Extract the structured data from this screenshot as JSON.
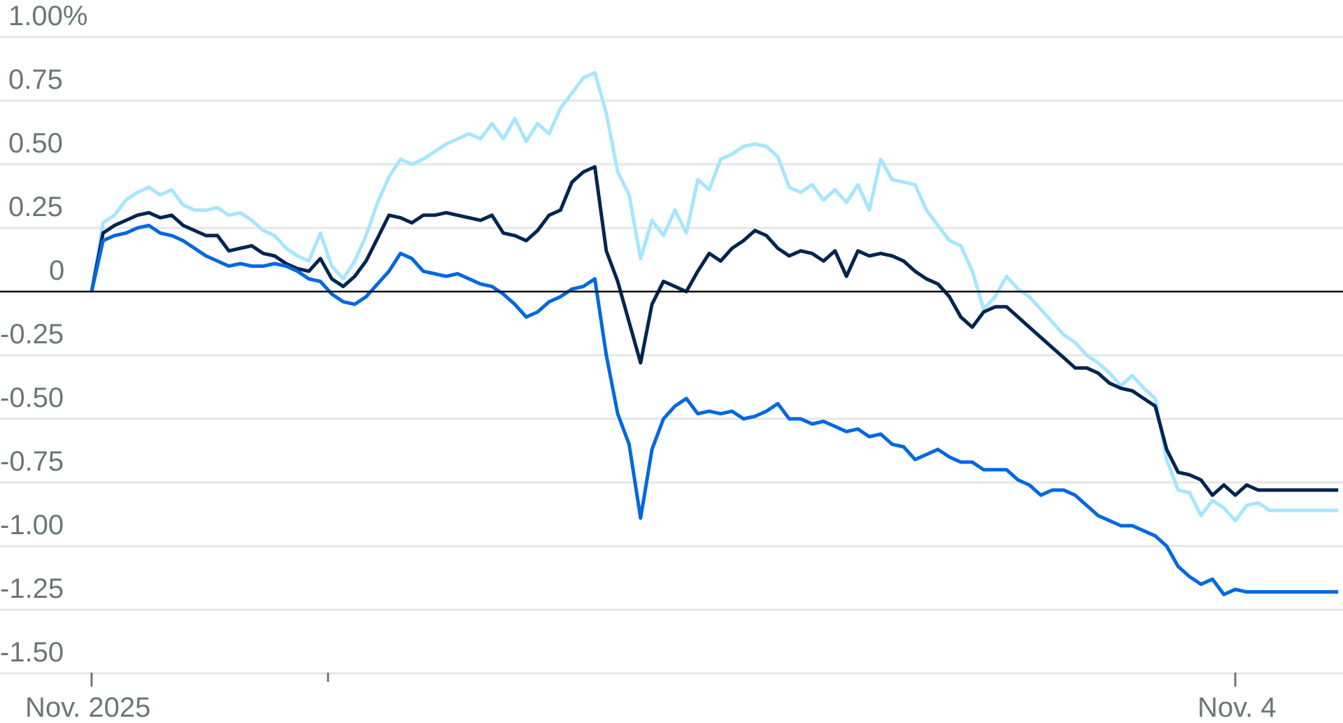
{
  "chart_data": {
    "type": "line",
    "title": "",
    "xlabel": "",
    "ylabel": "",
    "ylim": [
      -1.5,
      1.0
    ],
    "y_ticks": [
      {
        "value": 1.0,
        "label": "1.00%"
      },
      {
        "value": 0.75,
        "label": "0.75"
      },
      {
        "value": 0.5,
        "label": "0.50"
      },
      {
        "value": 0.25,
        "label": "0.25"
      },
      {
        "value": 0,
        "label": "0"
      },
      {
        "value": -0.25,
        "label": "-0.25"
      },
      {
        "value": -0.5,
        "label": "-0.50"
      },
      {
        "value": -0.75,
        "label": "-0.75"
      },
      {
        "value": -1.0,
        "label": "-1.00"
      },
      {
        "value": -1.25,
        "label": "-1.25"
      },
      {
        "value": -1.5,
        "label": "-1.50"
      }
    ],
    "x_ticks": [
      {
        "pos": 0,
        "label": "Nov. 2025"
      },
      {
        "pos": 0.2067,
        "label": ""
      },
      {
        "pos": 1.0,
        "label": "Nov. 4"
      }
    ],
    "grid": true,
    "legend": null,
    "x": [
      0,
      0.01,
      0.02,
      0.03,
      0.04,
      0.05,
      0.06,
      0.07,
      0.08,
      0.09,
      0.1,
      0.11,
      0.12,
      0.13,
      0.14,
      0.15,
      0.16,
      0.17,
      0.18,
      0.19,
      0.2,
      0.21,
      0.22,
      0.23,
      0.24,
      0.25,
      0.26,
      0.27,
      0.28,
      0.29,
      0.3,
      0.31,
      0.32,
      0.33,
      0.34,
      0.35,
      0.36,
      0.37,
      0.38,
      0.39,
      0.4,
      0.41,
      0.42,
      0.43,
      0.44,
      0.45,
      0.46,
      0.47,
      0.48,
      0.49,
      0.5,
      0.51,
      0.52,
      0.53,
      0.54,
      0.55,
      0.56,
      0.57,
      0.58,
      0.59,
      0.6,
      0.61,
      0.62,
      0.63,
      0.64,
      0.65,
      0.66,
      0.67,
      0.68,
      0.69,
      0.7,
      0.71,
      0.72,
      0.73,
      0.74,
      0.75,
      0.76,
      0.77,
      0.78,
      0.79,
      0.8,
      0.81,
      0.82,
      0.83,
      0.84,
      0.85,
      0.86,
      0.87,
      0.88,
      0.89,
      0.9,
      0.91,
      0.92,
      0.93,
      0.94,
      0.95,
      0.96,
      0.97,
      0.98,
      0.99,
      1.0,
      1.01,
      1.02,
      1.03,
      1.04,
      1.05,
      1.06,
      1.07,
      1.08,
      1.09
    ],
    "series": [
      {
        "name": "Light blue series",
        "color": "#a6e6ff",
        "values": [
          0,
          0.27,
          0.3,
          0.36,
          0.39,
          0.41,
          0.38,
          0.4,
          0.34,
          0.32,
          0.32,
          0.33,
          0.3,
          0.31,
          0.28,
          0.24,
          0.22,
          0.17,
          0.14,
          0.12,
          0.23,
          0.1,
          0.05,
          0.12,
          0.22,
          0.35,
          0.45,
          0.52,
          0.5,
          0.52,
          0.55,
          0.58,
          0.6,
          0.62,
          0.6,
          0.66,
          0.6,
          0.68,
          0.59,
          0.66,
          0.62,
          0.72,
          0.78,
          0.84,
          0.86,
          0.7,
          0.47,
          0.38,
          0.13,
          0.28,
          0.22,
          0.32,
          0.23,
          0.44,
          0.4,
          0.52,
          0.54,
          0.57,
          0.58,
          0.57,
          0.53,
          0.41,
          0.39,
          0.42,
          0.36,
          0.4,
          0.35,
          0.42,
          0.32,
          0.52,
          0.44,
          0.43,
          0.42,
          0.32,
          0.26,
          0.2,
          0.18,
          0.08,
          -0.07,
          -0.02,
          0.06,
          0.01,
          -0.02,
          -0.07,
          -0.12,
          -0.17,
          -0.2,
          -0.25,
          -0.28,
          -0.32,
          -0.37,
          -0.33,
          -0.38,
          -0.42,
          -0.66,
          -0.78,
          -0.79,
          -0.88,
          -0.82,
          -0.85,
          -0.9,
          -0.84,
          -0.83,
          -0.86,
          -0.86,
          -0.86,
          -0.86,
          -0.86,
          -0.86,
          -0.86
        ]
      },
      {
        "name": "Dark navy series",
        "color": "#002550",
        "values": [
          0,
          0.23,
          0.26,
          0.28,
          0.3,
          0.31,
          0.29,
          0.3,
          0.26,
          0.24,
          0.22,
          0.22,
          0.16,
          0.17,
          0.18,
          0.15,
          0.14,
          0.11,
          0.09,
          0.08,
          0.13,
          0.05,
          0.02,
          0.06,
          0.12,
          0.21,
          0.3,
          0.29,
          0.27,
          0.3,
          0.3,
          0.31,
          0.3,
          0.29,
          0.28,
          0.3,
          0.23,
          0.22,
          0.2,
          0.24,
          0.3,
          0.32,
          0.43,
          0.47,
          0.49,
          0.16,
          0.04,
          -0.12,
          -0.28,
          -0.05,
          0.04,
          0.02,
          0.0,
          0.08,
          0.15,
          0.12,
          0.17,
          0.2,
          0.24,
          0.22,
          0.17,
          0.14,
          0.16,
          0.15,
          0.12,
          0.16,
          0.06,
          0.16,
          0.14,
          0.15,
          0.14,
          0.12,
          0.08,
          0.05,
          0.03,
          -0.02,
          -0.1,
          -0.14,
          -0.08,
          -0.06,
          -0.06,
          -0.1,
          -0.14,
          -0.18,
          -0.22,
          -0.26,
          -0.3,
          -0.3,
          -0.32,
          -0.36,
          -0.38,
          -0.39,
          -0.42,
          -0.45,
          -0.62,
          -0.71,
          -0.72,
          -0.74,
          -0.8,
          -0.76,
          -0.8,
          -0.76,
          -0.78,
          -0.78,
          -0.78,
          -0.78,
          -0.78,
          -0.78,
          -0.78,
          -0.78
        ]
      },
      {
        "name": "Bright blue series",
        "color": "#0068e0",
        "values": [
          0,
          0.2,
          0.22,
          0.23,
          0.25,
          0.26,
          0.23,
          0.22,
          0.2,
          0.17,
          0.14,
          0.12,
          0.1,
          0.11,
          0.1,
          0.1,
          0.11,
          0.1,
          0.08,
          0.05,
          0.04,
          -0.01,
          -0.04,
          -0.05,
          -0.02,
          0.03,
          0.08,
          0.15,
          0.13,
          0.08,
          0.07,
          0.06,
          0.07,
          0.05,
          0.03,
          0.02,
          -0.01,
          -0.05,
          -0.1,
          -0.08,
          -0.04,
          -0.02,
          0.01,
          0.02,
          0.05,
          -0.25,
          -0.48,
          -0.6,
          -0.89,
          -0.62,
          -0.5,
          -0.45,
          -0.42,
          -0.48,
          -0.47,
          -0.48,
          -0.47,
          -0.5,
          -0.49,
          -0.47,
          -0.44,
          -0.5,
          -0.5,
          -0.52,
          -0.51,
          -0.53,
          -0.55,
          -0.54,
          -0.57,
          -0.56,
          -0.6,
          -0.61,
          -0.66,
          -0.64,
          -0.62,
          -0.65,
          -0.67,
          -0.67,
          -0.7,
          -0.7,
          -0.7,
          -0.74,
          -0.76,
          -0.8,
          -0.78,
          -0.78,
          -0.8,
          -0.84,
          -0.88,
          -0.9,
          -0.92,
          -0.92,
          -0.94,
          -0.96,
          -1.0,
          -1.08,
          -1.12,
          -1.15,
          -1.13,
          -1.19,
          -1.17,
          -1.18,
          -1.18,
          -1.18,
          -1.18,
          -1.18,
          -1.18,
          -1.18,
          -1.18,
          -1.18
        ]
      }
    ],
    "zero_line": {
      "value": 0,
      "color": "#000000"
    }
  },
  "colors": {
    "grid": "#e6e6e6",
    "text": "#6b7777",
    "axis": "#6b7777"
  }
}
